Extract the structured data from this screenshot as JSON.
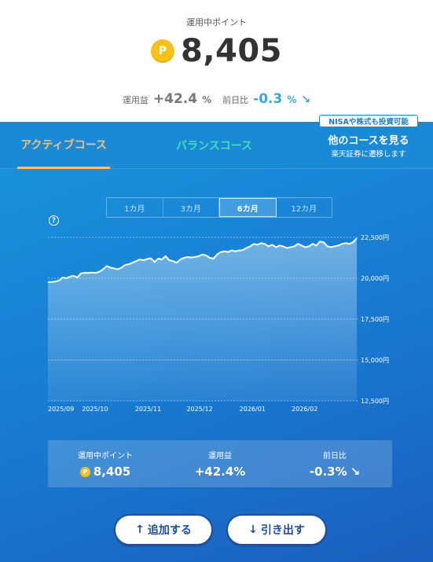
{
  "header": {
    "label": "運用中ポイント",
    "coin_symbol": "P",
    "points": "8,405",
    "gain_label": "運用益",
    "gain_value": "+42.4",
    "gain_unit": "%",
    "day_label": "前日比",
    "day_value": "-0.3",
    "day_unit": "%",
    "day_arrow": "↘"
  },
  "tabs": {
    "active": "アクティブコース",
    "balance": "バランスコース",
    "badge": "NISAや株式も投資可能",
    "other_title": "他のコースを見る",
    "other_sub": "楽天証券に遷移します"
  },
  "periods": [
    "1カ月",
    "3カ月",
    "6カ月",
    "12カ月"
  ],
  "selected_period": "6カ月",
  "help_icon": "?",
  "colors": {
    "accent_orange": "#f2c27a",
    "accent_green": "#3fe0b4",
    "coin_yellow": "#f6c21a",
    "down_blue": "#3ba6d6",
    "button_navy": "#1d4f9e"
  },
  "chart_data": {
    "type": "area",
    "y_ticks": [
      "22,500円",
      "20,000円",
      "17,500円",
      "15,000円",
      "12,500円"
    ],
    "y_tick_values": [
      22500,
      20000,
      17500,
      15000,
      12500
    ],
    "ylim": [
      12500,
      22500
    ],
    "x_ticks": [
      "2025/09",
      "2025/10",
      "2025/11",
      "2025/12",
      "2026/01",
      "2026/02"
    ],
    "grid": true,
    "series": [
      {
        "values": [
          19770,
          19770,
          19800,
          19850,
          20050,
          20000,
          20100,
          20150,
          20050,
          20300,
          20330,
          20320,
          20350,
          20330,
          20400,
          20550,
          20750,
          20650,
          20600,
          20550,
          20650,
          20820,
          20850,
          20950,
          21050,
          21150,
          21100,
          21180,
          21220,
          21000,
          21200,
          21150,
          21350,
          21100,
          21050,
          20950,
          21150,
          21250,
          21300,
          21270,
          21300,
          21350,
          21450,
          21400,
          21250,
          21200,
          21450,
          21600,
          21650,
          21600,
          21700,
          21650,
          21700,
          21720,
          21850,
          21950,
          22100,
          22050,
          22150,
          22100,
          21950,
          22050,
          21900,
          22000,
          21950,
          21850,
          21900,
          21950,
          22100,
          22000,
          21900,
          21950,
          22100,
          22000,
          22250,
          22200,
          21950,
          21900,
          21950,
          22000,
          22100,
          22150,
          22100,
          22200,
          22450
        ]
      }
    ]
  },
  "summary": {
    "points_label": "運用中ポイント",
    "points_value": "8,405",
    "gain_label": "運用益",
    "gain_value": "+42.4%",
    "day_label": "前日比",
    "day_value": "-0.3%",
    "day_arrow": "↘"
  },
  "buttons": {
    "add_icon": "↑",
    "add_label": "追加する",
    "withdraw_icon": "↓",
    "withdraw_label": "引き出す"
  }
}
